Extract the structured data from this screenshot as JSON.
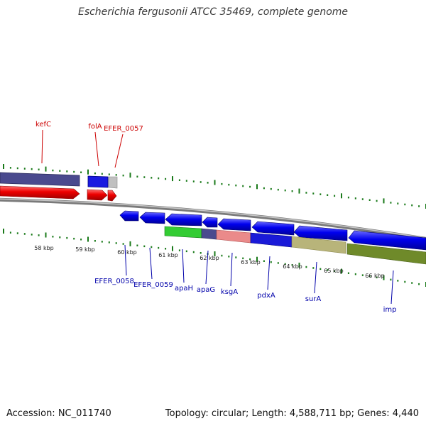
{
  "title": "Escherichia fergusonii ATCC 35469, complete genome",
  "footer": {
    "accession": "Accession: NC_011740",
    "topology": "Topology: circular; Length: 4,588,711 bp; Genes: 4,440"
  },
  "colors": {
    "gene_label_upper": "#cc0000",
    "gene_label_lower": "#0000aa",
    "tick": "#1a7a1a",
    "forward_cds": "#ee0000",
    "reverse_cds": "#0000ee",
    "backbone": "#8a8a8a"
  },
  "upper_genes": [
    "kefC",
    "folA",
    "EFER_0057"
  ],
  "lower_genes": [
    "EFER_0058",
    "EFER_0059",
    "apaH",
    "apaG",
    "ksgA",
    "pdxA",
    "surA",
    "imp"
  ],
  "kbp_labels": [
    "58 kbp",
    "59 kbp",
    "60 kbp",
    "61 kbp",
    "62 kbp",
    "63 kbp",
    "64 kbp",
    "65 kbp",
    "66 kbp"
  ]
}
